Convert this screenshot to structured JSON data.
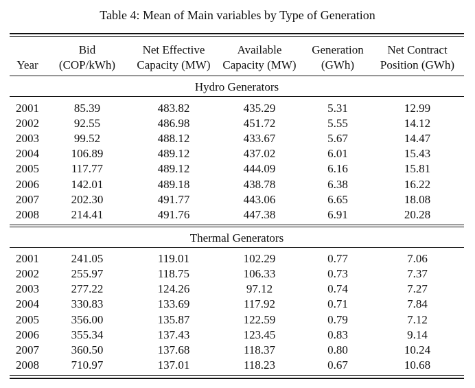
{
  "caption": "Table 4: Mean of Main variables by Type of Generation",
  "header": {
    "row1": [
      "",
      "Bid",
      "Net Effective",
      "Available",
      "Generation",
      "Net Contract"
    ],
    "row2": [
      "Year",
      "(COP/kWh)",
      "Capacity (MW)",
      "Capacity (MW)",
      "(GWh)",
      "Position (GWh)"
    ]
  },
  "sections": [
    {
      "title": "Hydro Generators",
      "rows": [
        [
          "2001",
          "85.39",
          "483.82",
          "435.29",
          "5.31",
          "12.99"
        ],
        [
          "2002",
          "92.55",
          "486.98",
          "451.72",
          "5.55",
          "14.12"
        ],
        [
          "2003",
          "99.52",
          "488.12",
          "433.67",
          "5.67",
          "14.47"
        ],
        [
          "2004",
          "106.89",
          "489.12",
          "437.02",
          "6.01",
          "15.43"
        ],
        [
          "2005",
          "117.77",
          "489.12",
          "444.09",
          "6.16",
          "15.81"
        ],
        [
          "2006",
          "142.01",
          "489.18",
          "438.78",
          "6.38",
          "16.22"
        ],
        [
          "2007",
          "202.30",
          "491.77",
          "443.06",
          "6.65",
          "18.08"
        ],
        [
          "2008",
          "214.41",
          "491.76",
          "447.38",
          "6.91",
          "20.28"
        ]
      ]
    },
    {
      "title": "Thermal Generators",
      "rows": [
        [
          "2001",
          "241.05",
          "119.01",
          "102.29",
          "0.77",
          "7.06"
        ],
        [
          "2002",
          "255.97",
          "118.75",
          "106.33",
          "0.73",
          "7.37"
        ],
        [
          "2003",
          "277.22",
          "124.26",
          "97.12",
          "0.74",
          "7.27"
        ],
        [
          "2004",
          "330.83",
          "133.69",
          "117.92",
          "0.71",
          "7.84"
        ],
        [
          "2005",
          "356.00",
          "135.87",
          "122.59",
          "0.79",
          "7.12"
        ],
        [
          "2006",
          "355.34",
          "137.43",
          "123.45",
          "0.83",
          "9.14"
        ],
        [
          "2007",
          "360.50",
          "137.68",
          "118.37",
          "0.80",
          "10.24"
        ],
        [
          "2008",
          "710.97",
          "137.01",
          "118.23",
          "0.67",
          "10.68"
        ]
      ]
    }
  ]
}
